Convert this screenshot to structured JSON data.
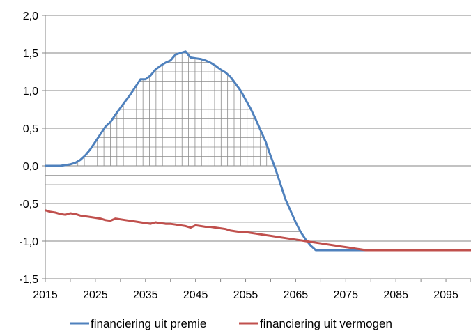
{
  "chart_data": {
    "type": "line",
    "xlim": [
      2015,
      2100
    ],
    "ylim": [
      -1.5,
      2.0
    ],
    "x_ticks": [
      2015,
      2025,
      2035,
      2045,
      2055,
      2065,
      2075,
      2085,
      2095
    ],
    "x_tick_labels": [
      "2015",
      "2025",
      "2035",
      "2045",
      "2055",
      "2065",
      "2075",
      "2085",
      "2095"
    ],
    "y_ticks": [
      2.0,
      1.5,
      1.0,
      0.5,
      0.0,
      -0.5,
      -1.0,
      -1.5
    ],
    "y_tick_labels": [
      "2,0",
      "1,5",
      "1,0",
      "0,5",
      "0,0",
      "-0,5",
      "-1,0",
      "-1,5"
    ],
    "grid": "horizontal",
    "legend_position": "bottom",
    "series": [
      {
        "name": "financiering uit premie",
        "color": "#4F81BD",
        "x": [
          2015,
          2016,
          2017,
          2018,
          2019,
          2020,
          2021,
          2022,
          2023,
          2024,
          2025,
          2026,
          2027,
          2028,
          2029,
          2030,
          2031,
          2032,
          2033,
          2034,
          2035,
          2036,
          2037,
          2038,
          2039,
          2040,
          2041,
          2042,
          2043,
          2044,
          2045,
          2046,
          2047,
          2048,
          2049,
          2050,
          2051,
          2052,
          2053,
          2054,
          2055,
          2056,
          2057,
          2058,
          2059,
          2060,
          2061,
          2062,
          2063,
          2064,
          2065,
          2066,
          2067,
          2068,
          2069,
          2070,
          2075,
          2080,
          2085,
          2090,
          2095,
          2100
        ],
        "values": [
          0.0,
          0.0,
          0.0,
          0.0,
          0.01,
          0.02,
          0.04,
          0.08,
          0.14,
          0.22,
          0.32,
          0.42,
          0.52,
          0.58,
          0.68,
          0.77,
          0.86,
          0.95,
          1.05,
          1.15,
          1.15,
          1.2,
          1.28,
          1.33,
          1.37,
          1.4,
          1.48,
          1.5,
          1.52,
          1.44,
          1.43,
          1.42,
          1.4,
          1.37,
          1.33,
          1.28,
          1.24,
          1.18,
          1.09,
          1.0,
          0.88,
          0.76,
          0.62,
          0.47,
          0.32,
          0.13,
          -0.05,
          -0.25,
          -0.45,
          -0.6,
          -0.75,
          -0.88,
          -0.98,
          -1.06,
          -1.12,
          -1.12,
          -1.12,
          -1.12,
          -1.12,
          -1.12,
          -1.12,
          -1.12
        ]
      },
      {
        "name": "financiering uit vermogen",
        "color": "#C0504D",
        "x": [
          2015,
          2016,
          2017,
          2018,
          2019,
          2020,
          2021,
          2022,
          2023,
          2024,
          2025,
          2026,
          2027,
          2028,
          2029,
          2030,
          2031,
          2032,
          2033,
          2034,
          2035,
          2036,
          2037,
          2038,
          2039,
          2040,
          2041,
          2042,
          2043,
          2044,
          2045,
          2046,
          2047,
          2048,
          2049,
          2050,
          2051,
          2052,
          2053,
          2054,
          2055,
          2056,
          2057,
          2058,
          2059,
          2060,
          2061,
          2062,
          2063,
          2064,
          2065,
          2066,
          2067,
          2068,
          2069,
          2070,
          2071,
          2072,
          2073,
          2074,
          2075,
          2076,
          2077,
          2078,
          2079,
          2080,
          2085,
          2090,
          2095,
          2100
        ],
        "values": [
          -0.59,
          -0.61,
          -0.62,
          -0.64,
          -0.65,
          -0.63,
          -0.64,
          -0.66,
          -0.67,
          -0.68,
          -0.69,
          -0.7,
          -0.72,
          -0.73,
          -0.7,
          -0.71,
          -0.72,
          -0.73,
          -0.74,
          -0.75,
          -0.76,
          -0.77,
          -0.75,
          -0.76,
          -0.77,
          -0.77,
          -0.78,
          -0.79,
          -0.8,
          -0.82,
          -0.79,
          -0.8,
          -0.81,
          -0.81,
          -0.82,
          -0.83,
          -0.84,
          -0.86,
          -0.87,
          -0.88,
          -0.88,
          -0.89,
          -0.9,
          -0.91,
          -0.92,
          -0.93,
          -0.94,
          -0.95,
          -0.96,
          -0.97,
          -0.98,
          -0.99,
          -1.0,
          -1.01,
          -1.02,
          -1.03,
          -1.04,
          -1.05,
          -1.06,
          -1.07,
          -1.08,
          -1.09,
          -1.1,
          -1.11,
          -1.12,
          -1.12,
          -1.12,
          -1.12,
          -1.12,
          -1.12
        ]
      }
    ]
  }
}
